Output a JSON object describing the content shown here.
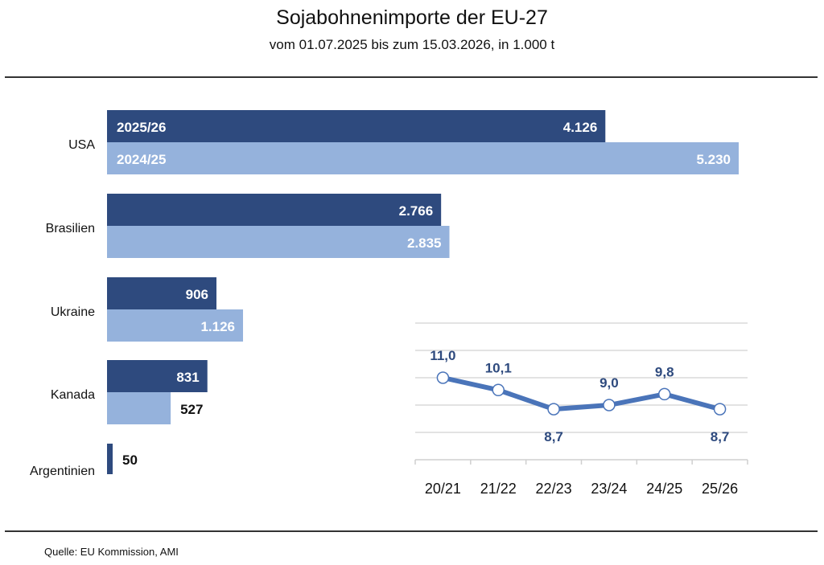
{
  "header": {
    "title": "Sojabohnenimporte der EU-27",
    "subtitle": "vom 01.07.2025 bis zum 15.03.2026, in 1.000 t"
  },
  "footer": {
    "source": "Quelle:  EU Kommission, AMI"
  },
  "colors": {
    "current": "#2e4a7e",
    "previous": "#95b2dc",
    "line": "#4a74b9",
    "line_label": "#2e4a7e"
  },
  "chart_data": [
    {
      "type": "bar",
      "orientation": "horizontal",
      "categories": [
        "USA",
        "Brasilien",
        "Ukraine",
        "Kanada",
        "Argentinien"
      ],
      "series": [
        {
          "name": "2025/26",
          "values": [
            4126,
            2766,
            906,
            831,
            50
          ],
          "labels": [
            "4.126",
            "2.766",
            "906",
            "831",
            "50"
          ]
        },
        {
          "name": "2024/25",
          "values": [
            5230,
            2835,
            1126,
            527,
            null
          ],
          "labels": [
            "5.230",
            "2.835",
            "1.126",
            "527",
            ""
          ]
        }
      ],
      "xlim": [
        0,
        5230
      ],
      "legend": "inside-first-bars"
    },
    {
      "type": "line",
      "categories": [
        "20/21",
        "21/22",
        "22/23",
        "23/24",
        "24/25",
        "25/26"
      ],
      "values": [
        11.0,
        10.1,
        8.7,
        9.0,
        9.8,
        8.7
      ],
      "labels": [
        "11,0",
        "10,1",
        "8,7",
        "9,0",
        "9,8",
        "8,7"
      ],
      "label_position": [
        "above",
        "above",
        "below",
        "above",
        "above",
        "below"
      ],
      "ylim": [
        5,
        15
      ],
      "yticks": [
        7,
        9,
        11,
        13,
        15
      ],
      "grid": true
    }
  ]
}
